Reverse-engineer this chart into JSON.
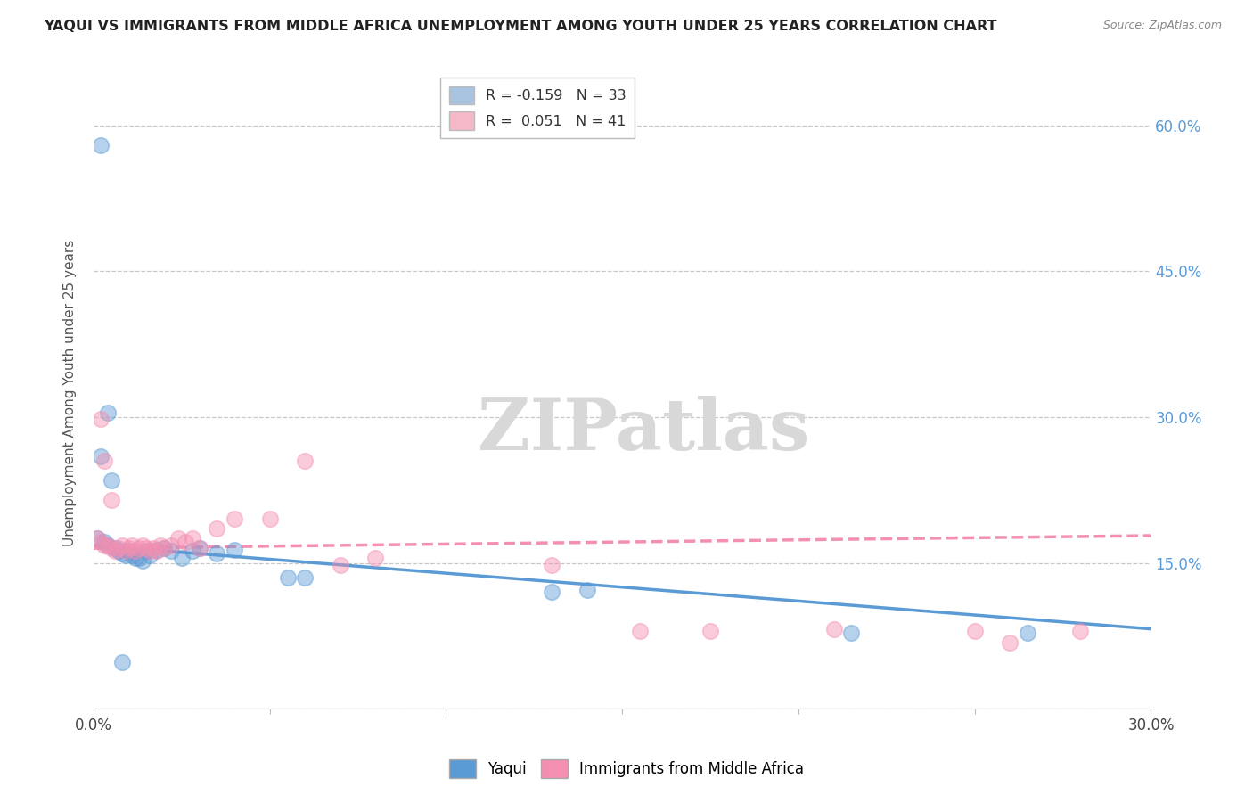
{
  "title": "YAQUI VS IMMIGRANTS FROM MIDDLE AFRICA UNEMPLOYMENT AMONG YOUTH UNDER 25 YEARS CORRELATION CHART",
  "source": "Source: ZipAtlas.com",
  "ylabel": "Unemployment Among Youth under 25 years",
  "xlabel": "",
  "xlim": [
    0.0,
    0.3
  ],
  "ylim": [
    0.0,
    0.65
  ],
  "x_ticks": [
    0.0,
    0.05,
    0.1,
    0.15,
    0.2,
    0.25,
    0.3
  ],
  "x_tick_labels": [
    "0.0%",
    "",
    "",
    "",
    "",
    "",
    "30.0%"
  ],
  "y_ticks": [
    0.0,
    0.15,
    0.3,
    0.45,
    0.6
  ],
  "y_tick_labels_right": [
    "",
    "15.0%",
    "30.0%",
    "45.0%",
    "60.0%"
  ],
  "legend_entries": [
    {
      "label": "R = -0.159   N = 33",
      "color": "#a8c4e0"
    },
    {
      "label": "R =  0.051   N = 41",
      "color": "#f4b8c8"
    }
  ],
  "yaqui_color": "#5b9bd5",
  "immigrants_color": "#f48fb1",
  "yaqui_scatter": [
    [
      0.002,
      0.58
    ],
    [
      0.004,
      0.305
    ],
    [
      0.002,
      0.26
    ],
    [
      0.005,
      0.235
    ],
    [
      0.001,
      0.175
    ],
    [
      0.003,
      0.172
    ],
    [
      0.004,
      0.168
    ],
    [
      0.006,
      0.165
    ],
    [
      0.007,
      0.162
    ],
    [
      0.008,
      0.16
    ],
    [
      0.009,
      0.158
    ],
    [
      0.01,
      0.162
    ],
    [
      0.011,
      0.158
    ],
    [
      0.012,
      0.155
    ],
    [
      0.013,
      0.155
    ],
    [
      0.014,
      0.152
    ],
    [
      0.015,
      0.162
    ],
    [
      0.016,
      0.158
    ],
    [
      0.018,
      0.163
    ],
    [
      0.02,
      0.165
    ],
    [
      0.022,
      0.162
    ],
    [
      0.025,
      0.155
    ],
    [
      0.028,
      0.162
    ],
    [
      0.03,
      0.165
    ],
    [
      0.035,
      0.16
    ],
    [
      0.04,
      0.163
    ],
    [
      0.055,
      0.135
    ],
    [
      0.06,
      0.135
    ],
    [
      0.13,
      0.12
    ],
    [
      0.14,
      0.122
    ],
    [
      0.008,
      0.048
    ],
    [
      0.215,
      0.078
    ],
    [
      0.265,
      0.078
    ]
  ],
  "immigrants_scatter": [
    [
      0.002,
      0.298
    ],
    [
      0.003,
      0.255
    ],
    [
      0.005,
      0.215
    ],
    [
      0.001,
      0.175
    ],
    [
      0.002,
      0.172
    ],
    [
      0.003,
      0.168
    ],
    [
      0.004,
      0.168
    ],
    [
      0.005,
      0.165
    ],
    [
      0.006,
      0.162
    ],
    [
      0.007,
      0.165
    ],
    [
      0.008,
      0.168
    ],
    [
      0.009,
      0.162
    ],
    [
      0.01,
      0.165
    ],
    [
      0.011,
      0.168
    ],
    [
      0.012,
      0.162
    ],
    [
      0.013,
      0.165
    ],
    [
      0.014,
      0.168
    ],
    [
      0.015,
      0.165
    ],
    [
      0.016,
      0.162
    ],
    [
      0.017,
      0.165
    ],
    [
      0.018,
      0.162
    ],
    [
      0.019,
      0.168
    ],
    [
      0.02,
      0.165
    ],
    [
      0.022,
      0.168
    ],
    [
      0.024,
      0.175
    ],
    [
      0.026,
      0.172
    ],
    [
      0.028,
      0.175
    ],
    [
      0.03,
      0.165
    ],
    [
      0.035,
      0.185
    ],
    [
      0.04,
      0.195
    ],
    [
      0.05,
      0.195
    ],
    [
      0.06,
      0.255
    ],
    [
      0.07,
      0.148
    ],
    [
      0.08,
      0.155
    ],
    [
      0.13,
      0.148
    ],
    [
      0.155,
      0.08
    ],
    [
      0.175,
      0.08
    ],
    [
      0.21,
      0.082
    ],
    [
      0.25,
      0.08
    ],
    [
      0.26,
      0.068
    ],
    [
      0.28,
      0.08
    ]
  ],
  "yaqui_r": -0.159,
  "yaqui_n": 33,
  "immigrants_r": 0.051,
  "immigrants_n": 41,
  "watermark": "ZIPatlas",
  "background_color": "#ffffff",
  "grid_color": "#c8c8c8"
}
